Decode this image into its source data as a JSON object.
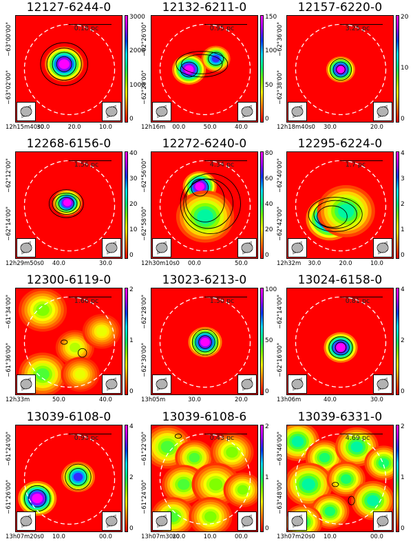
{
  "panels": [
    {
      "title": "12127-6244-0",
      "scale": "0.18 pc",
      "cbar": [
        "3000",
        "2000",
        "1000",
        "0"
      ],
      "yticks": [
        "−63°00'00\"",
        "−63°02'00\""
      ],
      "xticks": [
        "12h15m40s0",
        "30.0",
        "20.0",
        "10.0"
      ],
      "blobs": [
        {
          "cx": 0.45,
          "cy": 0.45,
          "r": 0.08,
          "peak": 1.0
        }
      ],
      "contours": [
        [
          0.45,
          0.45,
          0.22,
          0.2
        ],
        [
          0.45,
          0.45,
          0.16,
          0.15
        ],
        [
          0.45,
          0.45,
          0.11,
          0.11
        ],
        [
          0.45,
          0.45,
          0.07,
          0.07
        ]
      ]
    },
    {
      "title": "12132-6211-0",
      "scale": "0.95 pc",
      "cbar": [
        "150",
        "100",
        "50",
        "0"
      ],
      "yticks": [
        "−62°26'00\"",
        "−62°28'00\""
      ],
      "xticks": [
        "12h16m",
        "00.0",
        "50.0",
        "40.0"
      ],
      "blobs": [
        {
          "cx": 0.35,
          "cy": 0.5,
          "r": 0.07,
          "peak": 1.0
        },
        {
          "cx": 0.6,
          "cy": 0.4,
          "r": 0.06,
          "peak": 0.8
        }
      ],
      "contours": [
        [
          0.47,
          0.45,
          0.24,
          0.12
        ],
        [
          0.47,
          0.45,
          0.19,
          0.09
        ],
        [
          0.35,
          0.5,
          0.08,
          0.07
        ],
        [
          0.6,
          0.4,
          0.07,
          0.06
        ]
      ]
    },
    {
      "title": "12157-6220-0",
      "scale": "3.25 pc",
      "cbar": [
        "20",
        "10",
        "0"
      ],
      "yticks": [
        "−62°36'00\"",
        "−62°38'00\""
      ],
      "xticks": [
        "12h18m40s0",
        "30.0",
        "20.0"
      ],
      "blobs": [
        {
          "cx": 0.5,
          "cy": 0.5,
          "r": 0.06,
          "peak": 1.0
        }
      ],
      "contours": [
        [
          0.5,
          0.5,
          0.1,
          0.1
        ],
        [
          0.5,
          0.5,
          0.07,
          0.07
        ],
        [
          0.5,
          0.5,
          0.04,
          0.04
        ]
      ]
    },
    {
      "title": "12268-6156-0",
      "scale": "1.56 pc",
      "cbar": [
        "40",
        "30",
        "20",
        "10",
        "0"
      ],
      "yticks": [
        "−62°12'00\"",
        "−62°14'00\""
      ],
      "xticks": [
        "12h29m50s0",
        "40.0",
        "30.0"
      ],
      "blobs": [
        {
          "cx": 0.48,
          "cy": 0.47,
          "r": 0.06,
          "peak": 1.0
        }
      ],
      "contours": [
        [
          0.47,
          0.48,
          0.16,
          0.13
        ],
        [
          0.47,
          0.48,
          0.13,
          0.1
        ],
        [
          0.47,
          0.48,
          0.1,
          0.08
        ],
        [
          0.47,
          0.48,
          0.07,
          0.06
        ]
      ]
    },
    {
      "title": "12272-6240-0",
      "scale": "4.34 pc",
      "cbar": [
        "80",
        "60",
        "40",
        "20",
        "0"
      ],
      "yticks": [
        "−62°56'00\"",
        "−62°58'00\""
      ],
      "xticks": [
        "12h30m10s0",
        "00.0",
        "50.0"
      ],
      "blobs": [
        {
          "cx": 0.45,
          "cy": 0.32,
          "r": 0.07,
          "peak": 1.0
        },
        {
          "cx": 0.5,
          "cy": 0.6,
          "r": 0.12,
          "peak": 0.55
        }
      ],
      "contours": [
        [
          0.55,
          0.48,
          0.28,
          0.28
        ],
        [
          0.53,
          0.48,
          0.23,
          0.23
        ],
        [
          0.5,
          0.45,
          0.18,
          0.2
        ],
        [
          0.45,
          0.33,
          0.08,
          0.08
        ]
      ]
    },
    {
      "title": "12295-6224-0",
      "scale": "1.7 pc",
      "cbar": [
        "4",
        "3",
        "2",
        "1",
        "0"
      ],
      "yticks": [
        "−62°40'00\"",
        "−62°42'00\""
      ],
      "xticks": [
        "12h32m",
        "30.0",
        "20.0",
        "10.0"
      ],
      "blobs": [
        {
          "cx": 0.4,
          "cy": 0.62,
          "r": 0.1,
          "peak": 1.0
        },
        {
          "cx": 0.55,
          "cy": 0.55,
          "r": 0.12,
          "peak": 0.55
        }
      ],
      "contours": [
        [
          0.45,
          0.58,
          0.25,
          0.16
        ],
        [
          0.45,
          0.58,
          0.2,
          0.13
        ],
        [
          0.42,
          0.6,
          0.14,
          0.1
        ]
      ]
    },
    {
      "title": "12300-6119-0",
      "scale": "1.66 pc",
      "cbar": [
        "2",
        "1",
        "0"
      ],
      "yticks": [
        "−61°34'00\"",
        "−61°36'00\""
      ],
      "xticks": [
        "12h33m",
        "50.0",
        "40.0"
      ],
      "blobs": [
        {
          "cx": 0.25,
          "cy": 0.2,
          "r": 0.1,
          "peak": 0.4
        },
        {
          "cx": 0.55,
          "cy": 0.55,
          "r": 0.08,
          "peak": 0.35
        },
        {
          "cx": 0.25,
          "cy": 0.8,
          "r": 0.1,
          "peak": 0.45
        },
        {
          "cx": 0.8,
          "cy": 0.4,
          "r": 0.08,
          "peak": 0.3
        },
        {
          "cx": 0.6,
          "cy": 0.8,
          "r": 0.08,
          "peak": 0.3
        }
      ],
      "contours": [
        [
          0.62,
          0.6,
          0.04,
          0.04
        ],
        [
          0.45,
          0.5,
          0.03,
          0.02
        ]
      ]
    },
    {
      "title": "13023-6213-0",
      "scale": "1.50 pc",
      "cbar": [
        "100",
        "50",
        "0"
      ],
      "yticks": [
        "−62°28'00\"",
        "−62°30'00\""
      ],
      "xticks": [
        "13h05m",
        "30.0",
        "20.0"
      ],
      "blobs": [
        {
          "cx": 0.5,
          "cy": 0.5,
          "r": 0.07,
          "peak": 1.0
        }
      ],
      "contours": [
        [
          0.5,
          0.5,
          0.12,
          0.12
        ],
        [
          0.5,
          0.5,
          0.09,
          0.09
        ],
        [
          0.5,
          0.5,
          0.06,
          0.06
        ]
      ]
    },
    {
      "title": "13024-6158-0",
      "scale": "0.81 pc",
      "cbar": [
        "4",
        "2",
        "0"
      ],
      "yticks": [
        "−62°14'00\"",
        "−62°16'00\""
      ],
      "xticks": [
        "13h06m",
        "40.0",
        "30.0"
      ],
      "blobs": [
        {
          "cx": 0.5,
          "cy": 0.55,
          "r": 0.07,
          "peak": 1.0
        }
      ],
      "contours": [
        [
          0.5,
          0.55,
          0.11,
          0.1
        ],
        [
          0.5,
          0.55,
          0.08,
          0.07
        ],
        [
          0.5,
          0.55,
          0.05,
          0.05
        ]
      ]
    },
    {
      "title": "13039-6108-0",
      "scale": "0.93 pc",
      "cbar": [
        "4",
        "2",
        "0"
      ],
      "yticks": [
        "−61°24'00\"",
        "−61°26'00\""
      ],
      "xticks": [
        "13h07m20s0",
        "10.0",
        "00.0"
      ],
      "blobs": [
        {
          "cx": 0.2,
          "cy": 0.68,
          "r": 0.08,
          "peak": 1.0
        },
        {
          "cx": 0.58,
          "cy": 0.48,
          "r": 0.07,
          "peak": 0.8
        }
      ],
      "contours": [
        [
          0.2,
          0.68,
          0.12,
          0.12
        ],
        [
          0.58,
          0.48,
          0.12,
          0.12
        ],
        [
          0.2,
          0.68,
          0.08,
          0.08
        ],
        [
          0.58,
          0.48,
          0.08,
          0.08
        ]
      ]
    },
    {
      "title": "13039-6108-6",
      "scale": "0.43 pc",
      "cbar": [
        "2",
        "1",
        "0"
      ],
      "yticks": [
        "−61°22'00\"",
        "−61°24'00\""
      ],
      "xticks": [
        "13h07m30s0",
        "20.0",
        "10.0",
        "00.0"
      ],
      "blobs": [
        {
          "cx": 0.15,
          "cy": 0.2,
          "r": 0.1,
          "peak": 0.45
        },
        {
          "cx": 0.4,
          "cy": 0.3,
          "r": 0.08,
          "peak": 0.45
        },
        {
          "cx": 0.75,
          "cy": 0.25,
          "r": 0.09,
          "peak": 0.4
        },
        {
          "cx": 0.3,
          "cy": 0.55,
          "r": 0.09,
          "peak": 0.45
        },
        {
          "cx": 0.6,
          "cy": 0.55,
          "r": 0.1,
          "peak": 0.4
        },
        {
          "cx": 0.85,
          "cy": 0.6,
          "r": 0.08,
          "peak": 0.4
        },
        {
          "cx": 0.2,
          "cy": 0.85,
          "r": 0.09,
          "peak": 0.45
        },
        {
          "cx": 0.55,
          "cy": 0.85,
          "r": 0.09,
          "peak": 0.4
        }
      ],
      "contours": [
        [
          0.25,
          0.1,
          0.03,
          0.02
        ]
      ]
    },
    {
      "title": "13039-6331-0",
      "scale": "4.69 pc",
      "cbar": [
        "2",
        "1",
        "0"
      ],
      "yticks": [
        "−63°46'00\"",
        "−63°48'00\""
      ],
      "xticks": [
        "13h07m20s0",
        "10.0",
        "00.0"
      ],
      "blobs": [
        {
          "cx": 0.1,
          "cy": 0.15,
          "r": 0.09,
          "peak": 0.55
        },
        {
          "cx": 0.35,
          "cy": 0.3,
          "r": 0.08,
          "peak": 0.5
        },
        {
          "cx": 0.65,
          "cy": 0.2,
          "r": 0.09,
          "peak": 0.55
        },
        {
          "cx": 0.9,
          "cy": 0.35,
          "r": 0.08,
          "peak": 0.5
        },
        {
          "cx": 0.2,
          "cy": 0.55,
          "r": 0.1,
          "peak": 0.55
        },
        {
          "cx": 0.55,
          "cy": 0.5,
          "r": 0.08,
          "peak": 0.5
        },
        {
          "cx": 0.8,
          "cy": 0.7,
          "r": 0.09,
          "peak": 0.55
        },
        {
          "cx": 0.4,
          "cy": 0.8,
          "r": 0.08,
          "peak": 0.5
        },
        {
          "cx": 0.15,
          "cy": 0.9,
          "r": 0.08,
          "peak": 0.5
        }
      ],
      "contours": [
        [
          0.6,
          0.7,
          0.03,
          0.04
        ],
        [
          0.45,
          0.55,
          0.03,
          0.02
        ]
      ]
    }
  ]
}
